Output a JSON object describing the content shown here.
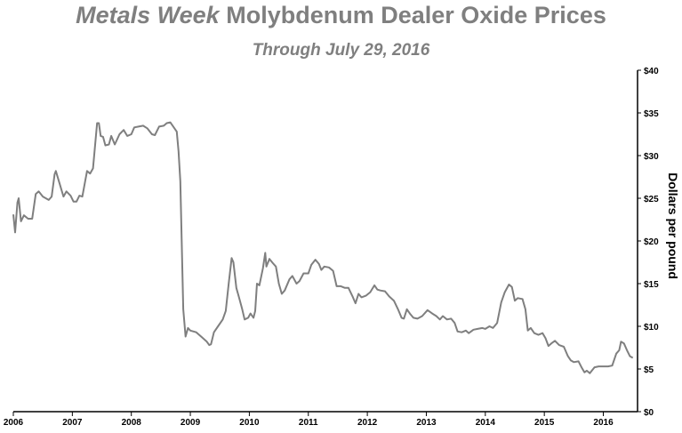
{
  "chart_data": {
    "type": "line",
    "title_italic": "Metals Week",
    "title_rest": " Molybdenum Dealer Oxide Prices",
    "subtitle": "Through July 29, 2016",
    "xlabel": "",
    "ylabel": "Dollars per pound",
    "xlim": [
      2006,
      2016.58
    ],
    "ylim": [
      0,
      40
    ],
    "x_ticks": [
      "2006",
      "2007",
      "2008",
      "2009",
      "2010",
      "2011",
      "2012",
      "2013",
      "2014",
      "2015",
      "2016"
    ],
    "y_ticks": [
      "$0",
      "$5",
      "$10",
      "$15",
      "$20",
      "$25",
      "$30",
      "$35",
      "$40"
    ],
    "y_axis_side": "right",
    "grid": false,
    "line_color": "#7f7f7f",
    "points": [
      [
        2006.0,
        23.1
      ],
      [
        2006.03,
        21.0
      ],
      [
        2006.07,
        24.5
      ],
      [
        2006.09,
        25.0
      ],
      [
        2006.13,
        22.3
      ],
      [
        2006.18,
        23.0
      ],
      [
        2006.25,
        22.6
      ],
      [
        2006.32,
        22.6
      ],
      [
        2006.38,
        25.5
      ],
      [
        2006.43,
        25.8
      ],
      [
        2006.5,
        25.2
      ],
      [
        2006.6,
        24.8
      ],
      [
        2006.65,
        25.2
      ],
      [
        2006.7,
        27.8
      ],
      [
        2006.72,
        28.2
      ],
      [
        2006.78,
        26.8
      ],
      [
        2006.85,
        25.2
      ],
      [
        2006.9,
        25.8
      ],
      [
        2006.97,
        25.3
      ],
      [
        2007.02,
        24.6
      ],
      [
        2007.07,
        24.6
      ],
      [
        2007.12,
        25.3
      ],
      [
        2007.17,
        25.2
      ],
      [
        2007.25,
        28.2
      ],
      [
        2007.3,
        27.9
      ],
      [
        2007.35,
        28.5
      ],
      [
        2007.42,
        33.8
      ],
      [
        2007.45,
        33.8
      ],
      [
        2007.48,
        32.3
      ],
      [
        2007.52,
        32.2
      ],
      [
        2007.56,
        31.2
      ],
      [
        2007.62,
        31.3
      ],
      [
        2007.66,
        32.3
      ],
      [
        2007.72,
        31.3
      ],
      [
        2007.8,
        32.5
      ],
      [
        2007.87,
        33.0
      ],
      [
        2007.93,
        32.3
      ],
      [
        2008.0,
        32.5
      ],
      [
        2008.05,
        33.3
      ],
      [
        2008.12,
        33.4
      ],
      [
        2008.2,
        33.5
      ],
      [
        2008.27,
        33.2
      ],
      [
        2008.35,
        32.5
      ],
      [
        2008.4,
        32.4
      ],
      [
        2008.47,
        33.4
      ],
      [
        2008.55,
        33.5
      ],
      [
        2008.6,
        33.8
      ],
      [
        2008.66,
        33.9
      ],
      [
        2008.72,
        33.3
      ],
      [
        2008.77,
        32.8
      ],
      [
        2008.8,
        30.5
      ],
      [
        2008.83,
        27.0
      ],
      [
        2008.88,
        12.0
      ],
      [
        2008.92,
        8.8
      ],
      [
        2008.96,
        9.8
      ],
      [
        2009.0,
        9.5
      ],
      [
        2009.1,
        9.3
      ],
      [
        2009.2,
        8.7
      ],
      [
        2009.28,
        8.2
      ],
      [
        2009.32,
        7.8
      ],
      [
        2009.35,
        7.9
      ],
      [
        2009.4,
        9.3
      ],
      [
        2009.47,
        10.0
      ],
      [
        2009.55,
        10.8
      ],
      [
        2009.6,
        11.8
      ],
      [
        2009.65,
        15.0
      ],
      [
        2009.7,
        18.0
      ],
      [
        2009.73,
        17.5
      ],
      [
        2009.78,
        14.5
      ],
      [
        2009.82,
        13.5
      ],
      [
        2009.88,
        12.0
      ],
      [
        2009.92,
        10.8
      ],
      [
        2009.98,
        11.0
      ],
      [
        2010.02,
        11.5
      ],
      [
        2010.07,
        11.0
      ],
      [
        2010.1,
        11.8
      ],
      [
        2010.13,
        15.0
      ],
      [
        2010.17,
        14.8
      ],
      [
        2010.23,
        16.8
      ],
      [
        2010.27,
        18.6
      ],
      [
        2010.29,
        17.0
      ],
      [
        2010.34,
        17.9
      ],
      [
        2010.4,
        17.4
      ],
      [
        2010.45,
        17.0
      ],
      [
        2010.5,
        15.0
      ],
      [
        2010.55,
        13.8
      ],
      [
        2010.6,
        14.2
      ],
      [
        2010.68,
        15.5
      ],
      [
        2010.73,
        15.9
      ],
      [
        2010.8,
        15.0
      ],
      [
        2010.85,
        15.3
      ],
      [
        2010.92,
        16.2
      ],
      [
        2011.0,
        16.2
      ],
      [
        2011.05,
        17.2
      ],
      [
        2011.12,
        17.8
      ],
      [
        2011.18,
        17.3
      ],
      [
        2011.22,
        16.6
      ],
      [
        2011.27,
        17.0
      ],
      [
        2011.35,
        16.9
      ],
      [
        2011.42,
        16.5
      ],
      [
        2011.48,
        14.7
      ],
      [
        2011.55,
        14.7
      ],
      [
        2011.62,
        14.5
      ],
      [
        2011.68,
        14.5
      ],
      [
        2011.75,
        13.5
      ],
      [
        2011.8,
        12.7
      ],
      [
        2011.85,
        13.8
      ],
      [
        2011.9,
        13.4
      ],
      [
        2011.98,
        13.6
      ],
      [
        2012.05,
        14.0
      ],
      [
        2012.12,
        14.8
      ],
      [
        2012.17,
        14.3
      ],
      [
        2012.22,
        14.2
      ],
      [
        2012.3,
        14.1
      ],
      [
        2012.37,
        13.5
      ],
      [
        2012.45,
        13.0
      ],
      [
        2012.52,
        12.0
      ],
      [
        2012.58,
        11.0
      ],
      [
        2012.62,
        10.9
      ],
      [
        2012.67,
        12.0
      ],
      [
        2012.72,
        11.5
      ],
      [
        2012.78,
        11.0
      ],
      [
        2012.85,
        10.9
      ],
      [
        2012.93,
        11.2
      ],
      [
        2013.02,
        11.9
      ],
      [
        2013.1,
        11.5
      ],
      [
        2013.17,
        11.2
      ],
      [
        2013.23,
        10.8
      ],
      [
        2013.28,
        11.2
      ],
      [
        2013.35,
        10.8
      ],
      [
        2013.42,
        10.9
      ],
      [
        2013.48,
        10.4
      ],
      [
        2013.53,
        9.4
      ],
      [
        2013.6,
        9.3
      ],
      [
        2013.67,
        9.5
      ],
      [
        2013.72,
        9.2
      ],
      [
        2013.8,
        9.6
      ],
      [
        2013.87,
        9.7
      ],
      [
        2013.95,
        9.8
      ],
      [
        2014.0,
        9.7
      ],
      [
        2014.07,
        10.0
      ],
      [
        2014.13,
        9.8
      ],
      [
        2014.2,
        10.4
      ],
      [
        2014.27,
        12.8
      ],
      [
        2014.33,
        14.0
      ],
      [
        2014.4,
        14.9
      ],
      [
        2014.45,
        14.6
      ],
      [
        2014.5,
        13.0
      ],
      [
        2014.55,
        13.3
      ],
      [
        2014.63,
        13.2
      ],
      [
        2014.68,
        12.0
      ],
      [
        2014.72,
        9.5
      ],
      [
        2014.77,
        9.8
      ],
      [
        2014.83,
        9.2
      ],
      [
        2014.9,
        9.0
      ],
      [
        2014.97,
        9.2
      ],
      [
        2015.02,
        8.6
      ],
      [
        2015.07,
        7.7
      ],
      [
        2015.12,
        8.0
      ],
      [
        2015.18,
        8.3
      ],
      [
        2015.25,
        7.8
      ],
      [
        2015.33,
        7.6
      ],
      [
        2015.4,
        6.5
      ],
      [
        2015.45,
        6.0
      ],
      [
        2015.5,
        5.8
      ],
      [
        2015.58,
        5.9
      ],
      [
        2015.63,
        5.2
      ],
      [
        2015.68,
        4.6
      ],
      [
        2015.72,
        4.8
      ],
      [
        2015.77,
        4.5
      ],
      [
        2015.85,
        5.2
      ],
      [
        2015.92,
        5.3
      ],
      [
        2016.0,
        5.3
      ],
      [
        2016.08,
        5.3
      ],
      [
        2016.15,
        5.4
      ],
      [
        2016.22,
        6.8
      ],
      [
        2016.27,
        7.2
      ],
      [
        2016.3,
        8.2
      ],
      [
        2016.35,
        8.0
      ],
      [
        2016.4,
        7.2
      ],
      [
        2016.45,
        6.5
      ],
      [
        2016.5,
        6.3
      ]
    ]
  }
}
